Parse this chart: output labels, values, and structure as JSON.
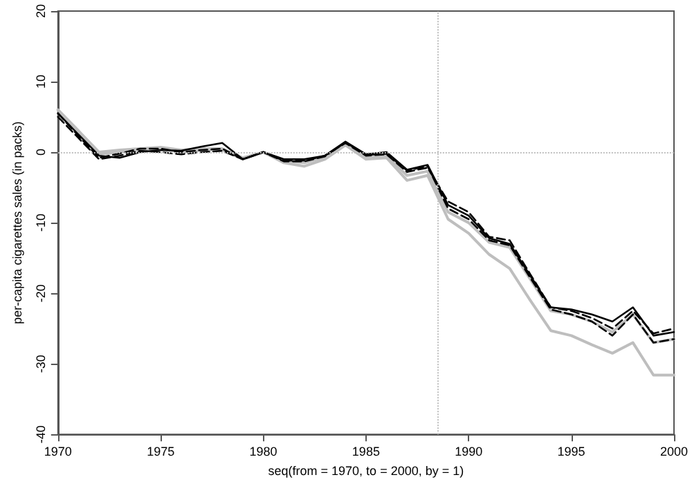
{
  "chart_data": {
    "type": "line",
    "xlabel": "seq(from = 1970, to = 2000, by = 1)",
    "ylabel": "per-capita cigarettes sales (in packs)",
    "x": [
      1970,
      1971,
      1972,
      1973,
      1974,
      1975,
      1976,
      1977,
      1978,
      1979,
      1980,
      1981,
      1982,
      1983,
      1984,
      1985,
      1986,
      1987,
      1988,
      1989,
      1990,
      1991,
      1992,
      1993,
      1994,
      1995,
      1996,
      1997,
      1998,
      1999,
      2000
    ],
    "series": [
      {
        "color": "#bebebe",
        "line_style": "solid",
        "values": [
          6,
          3,
          0,
          0.3,
          0.5,
          0.7,
          0.3,
          0.5,
          0.5,
          -0.8,
          0,
          -1.5,
          -2,
          -1,
          1,
          -1,
          -0.8,
          -4,
          -3.3,
          -9.5,
          -11.5,
          -14.5,
          -16.5,
          -21,
          -25.3,
          -26,
          -27.3,
          -28.5,
          -27,
          -31.6,
          -31.6
        ]
      },
      {
        "color": "#bebebe",
        "line_style": "solid",
        "values": [
          6,
          3,
          -0.3,
          0,
          0.3,
          0.5,
          0,
          0.3,
          0.3,
          -1,
          0,
          -1.3,
          -1.5,
          -0.7,
          1.2,
          -0.8,
          -0.5,
          -3.3,
          -2.7,
          -8.5,
          -10,
          -12.8,
          -13.5,
          -18,
          -22.5,
          -23,
          -24,
          -25.5,
          -23,
          -27,
          -26.5
        ]
      },
      {
        "color": "#000000",
        "line_style": "dashed",
        "values": [
          5,
          2,
          -1,
          -0.5,
          0.2,
          0,
          -0.3,
          0,
          0.2,
          -1,
          0,
          -1.2,
          -1.2,
          -0.5,
          1.3,
          -0.5,
          -0.3,
          -2.8,
          -2.2,
          -7,
          -8.5,
          -12,
          -12.5,
          -17.3,
          -22,
          -22.5,
          -23.5,
          -25,
          -22.5,
          -25.7,
          -25
        ]
      },
      {
        "color": "#000000",
        "line_style": "dashed",
        "values": [
          5.5,
          2.3,
          -0.8,
          -0.2,
          0.5,
          0.5,
          0,
          0.3,
          0.5,
          -1,
          0,
          -1.3,
          -1.3,
          -0.6,
          1.4,
          -0.4,
          -0.2,
          -2.6,
          -2,
          -8,
          -9.5,
          -12.5,
          -13.2,
          -17.8,
          -22.3,
          -23,
          -24,
          -26,
          -23,
          -27,
          -26.5
        ]
      },
      {
        "color": "#000000",
        "line_style": "solid",
        "values": [
          5.5,
          2.5,
          -0.5,
          -0.8,
          0,
          0.3,
          0.2,
          0.8,
          1.3,
          -1,
          0,
          -1,
          -1,
          -0.5,
          1.5,
          -0.3,
          0,
          -2.5,
          -1.8,
          -7.5,
          -9,
          -12.2,
          -13,
          -17.5,
          -22,
          -22.3,
          -23,
          -24,
          -22,
          -26,
          -25.5
        ]
      }
    ],
    "xlim": [
      1970,
      2000
    ],
    "xticks": [
      1970,
      1975,
      1980,
      1985,
      1990,
      1995,
      2000
    ],
    "ylim": [
      -40,
      20
    ],
    "yticks": [
      -40,
      -30,
      -20,
      -10,
      0,
      10,
      20
    ],
    "ref_lines": [
      {
        "axis": "y",
        "value": 0,
        "color": "#bebebe",
        "line_style": "dotted"
      },
      {
        "axis": "x",
        "value": 1988.5,
        "color": "#bebebe",
        "line_style": "dotted"
      }
    ],
    "grid": false
  }
}
